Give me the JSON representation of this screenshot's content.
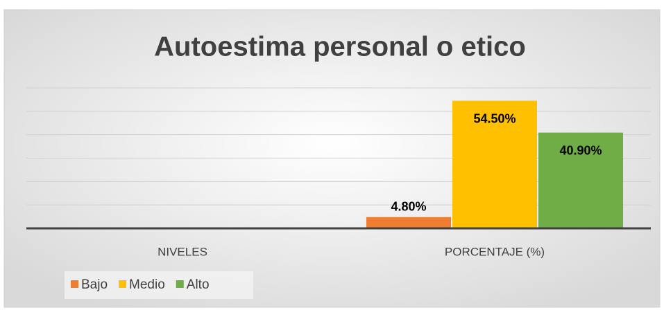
{
  "chart_data": {
    "type": "bar",
    "title": "Autoestima personal o etico",
    "categories": [
      "NIVELES",
      "PORCENTAJE (%)"
    ],
    "series": [
      {
        "name": "Bajo",
        "color": "#ed7d31",
        "values": [
          null,
          4.8
        ],
        "value_labels": [
          null,
          "4.80%"
        ]
      },
      {
        "name": "Medio",
        "color": "#ffc000",
        "values": [
          null,
          54.5
        ],
        "value_labels": [
          null,
          "54.50%"
        ]
      },
      {
        "name": "Alto",
        "color": "#70ad47",
        "values": [
          null,
          40.9
        ],
        "value_labels": [
          null,
          "40.90%"
        ]
      }
    ],
    "ylim": [
      0,
      60
    ],
    "yticks": [
      0,
      10,
      20,
      30,
      40,
      50,
      60
    ],
    "grid": true,
    "legend": "bottom-left"
  }
}
